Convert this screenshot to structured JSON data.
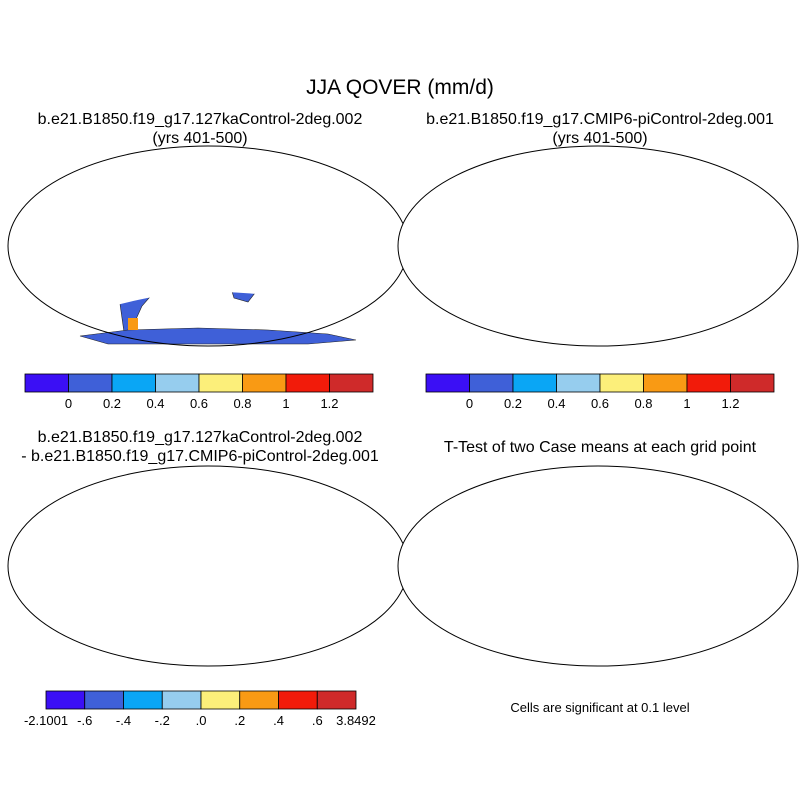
{
  "figure": {
    "title": "JJA QOVER (mm/d)"
  },
  "colors": {
    "purple": "#3b0ff5",
    "blue": "#3f60d8",
    "cyan": "#0aa6f5",
    "lightblue": "#96cdee",
    "yellow": "#fcef7a",
    "orange": "#f99a14",
    "red": "#f21b0a",
    "darkred": "#cf2a2a",
    "signif": "#ee0000"
  },
  "panels": {
    "top_left": {
      "title_line1": "b.e21.B1850.f19_g17.127kaControl-2deg.002",
      "title_line2": "(yrs 401-500)",
      "colorbar_labels": [
        "0",
        "0.2",
        "0.4",
        "0.6",
        "0.8",
        "1",
        "1.2"
      ]
    },
    "top_right": {
      "title_line1": "b.e21.B1850.f19_g17.CMIP6-piControl-2deg.001",
      "title_line2": "(yrs 401-500)",
      "colorbar_labels": [
        "0",
        "0.2",
        "0.4",
        "0.6",
        "0.8",
        "1",
        "1.2"
      ]
    },
    "bottom_left": {
      "title_line1": "b.e21.B1850.f19_g17.127kaControl-2deg.002",
      "title_line2": "- b.e21.B1850.f19_g17.CMIP6-piControl-2deg.001",
      "colorbar_labels": [
        "-2.1001",
        "-.6",
        "-.4",
        "-.2",
        ".0",
        ".2",
        ".4",
        ".6",
        "3.8492"
      ]
    },
    "bottom_right": {
      "title": "T-Test of two Case means at each grid point",
      "note": "Cells are significant at 0.1 level"
    }
  }
}
